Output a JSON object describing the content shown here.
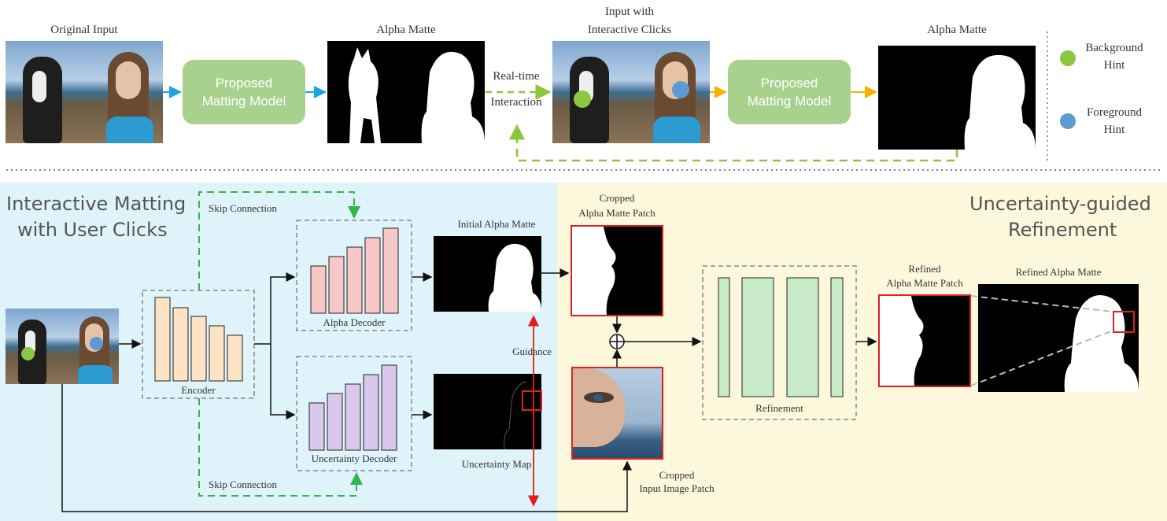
{
  "top": {
    "original_input": "Original Input",
    "proposed_model_1": "Proposed Matting Model",
    "alpha_matte_1": "Alpha Matte",
    "realtime": "Real-time",
    "interaction": "Interaction",
    "input_clicks_line1": "Input with",
    "input_clicks_line2": "Interactive Clicks",
    "proposed_model_2": "Proposed Matting Model",
    "alpha_matte_2": "Alpha Matte"
  },
  "legend": {
    "background_line1": "Background",
    "background_line2": "Hint",
    "foreground_line1": "Foreground",
    "foreground_line2": "Hint",
    "background_color": "#8dc63f",
    "foreground_color": "#5b9bd5"
  },
  "left_panel": {
    "title_line1": "Interactive Matting",
    "title_line2": "with User Clicks",
    "skip_top": "Skip Connection",
    "skip_bottom": "Skip Connection",
    "encoder": "Encoder",
    "alpha_decoder": "Alpha Decoder",
    "uncertainty_decoder": "Uncertainty Decoder",
    "initial_alpha": "Initial Alpha Matte",
    "uncertainty_map": "Uncertainty Map",
    "guidance": "Guidance"
  },
  "right_panel": {
    "title_line1": "Uncertainty-guided",
    "title_line2": "Refinement",
    "cropped_alpha_line1": "Cropped",
    "cropped_alpha_line2": "Alpha Matte Patch",
    "cropped_input_line1": "Cropped",
    "cropped_input_line2": "Input Image Patch",
    "refinement": "Refinement",
    "refined_patch_line1": "Refined",
    "refined_patch_line2": "Alpha Matte Patch",
    "refined_alpha": "Refined Alpha Matte"
  },
  "colors": {
    "left_bg": "#def3fa",
    "right_bg": "#fdf8dc",
    "blue_arrow": "#1aa6dd",
    "yellow_arrow": "#f5b400",
    "dash_green": "#33b54a",
    "lime_dash": "#8dc63f",
    "red": "#e02020"
  }
}
